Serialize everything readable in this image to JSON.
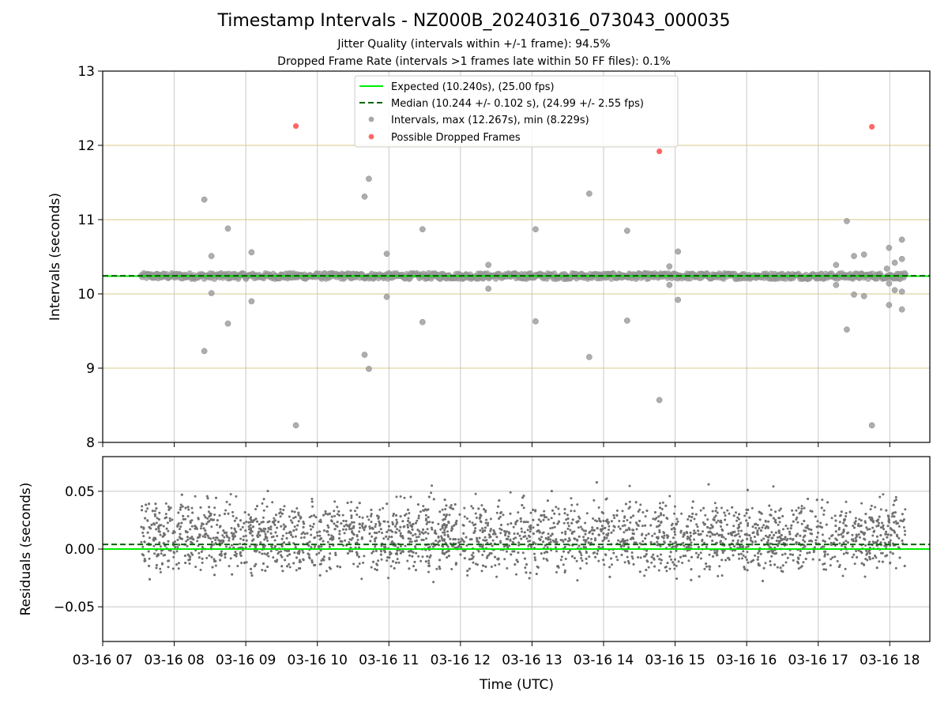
{
  "header": {
    "title": "Timestamp Intervals - NZ000B_20240316_073043_000035",
    "subtitle1": "Jitter Quality (intervals within +/-1 frame): 94.5%",
    "subtitle2": "Dropped Frame Rate (intervals >1 frames late within 50 FF files): 0.1%"
  },
  "colors": {
    "expected": "#00ee00",
    "median": "#006400",
    "intervals": "#9a9a9a",
    "dropped": "#ff5555",
    "residual": "#707070",
    "hgrid_top": "#d8c88a",
    "grid": "#c8c8c8"
  },
  "chart_data": [
    {
      "type": "scatter",
      "ylabel": "Intervals (seconds)",
      "ylim": [
        8,
        13
      ],
      "yticks": [
        "8",
        "9",
        "10",
        "11",
        "12",
        "13"
      ],
      "xlim": [
        7.0,
        18.56
      ],
      "grid": true,
      "legend_position": "top-center",
      "legend": [
        "Expected (10.240s), (25.00 fps)",
        "Median (10.244 +/- 0.102 s), (24.99 +/- 2.55 fps)",
        "Intervals, max (12.267s), min (8.229s)",
        "Possible Dropped Frames"
      ],
      "expected": 10.24,
      "median": 10.244,
      "x_band": [
        7.54,
        18.22
      ],
      "band_y": [
        10.2,
        10.28
      ],
      "outliers": [
        {
          "x": 8.42,
          "y": 11.27
        },
        {
          "x": 8.42,
          "y": 9.23
        },
        {
          "x": 8.52,
          "y": 10.51
        },
        {
          "x": 8.52,
          "y": 10.01
        },
        {
          "x": 8.75,
          "y": 10.88
        },
        {
          "x": 8.75,
          "y": 9.6
        },
        {
          "x": 9.08,
          "y": 10.56
        },
        {
          "x": 9.08,
          "y": 9.9
        },
        {
          "x": 9.7,
          "y": 8.23
        },
        {
          "x": 10.66,
          "y": 11.31
        },
        {
          "x": 10.66,
          "y": 9.18
        },
        {
          "x": 10.72,
          "y": 11.55
        },
        {
          "x": 10.72,
          "y": 8.99
        },
        {
          "x": 10.97,
          "y": 10.54
        },
        {
          "x": 10.97,
          "y": 9.96
        },
        {
          "x": 11.47,
          "y": 10.87
        },
        {
          "x": 11.47,
          "y": 9.62
        },
        {
          "x": 12.39,
          "y": 10.39
        },
        {
          "x": 12.39,
          "y": 10.07
        },
        {
          "x": 13.05,
          "y": 10.87
        },
        {
          "x": 13.05,
          "y": 9.63
        },
        {
          "x": 13.8,
          "y": 11.35
        },
        {
          "x": 13.8,
          "y": 9.15
        },
        {
          "x": 14.33,
          "y": 10.85
        },
        {
          "x": 14.33,
          "y": 9.64
        },
        {
          "x": 14.78,
          "y": 8.57
        },
        {
          "x": 14.92,
          "y": 10.37
        },
        {
          "x": 14.92,
          "y": 10.12
        },
        {
          "x": 15.04,
          "y": 10.57
        },
        {
          "x": 15.04,
          "y": 9.92
        },
        {
          "x": 17.25,
          "y": 10.39
        },
        {
          "x": 17.25,
          "y": 10.12
        },
        {
          "x": 17.4,
          "y": 10.98
        },
        {
          "x": 17.4,
          "y": 9.52
        },
        {
          "x": 17.5,
          "y": 10.51
        },
        {
          "x": 17.5,
          "y": 9.99
        },
        {
          "x": 17.64,
          "y": 10.53
        },
        {
          "x": 17.64,
          "y": 9.97
        },
        {
          "x": 17.99,
          "y": 10.62
        },
        {
          "x": 17.99,
          "y": 10.14
        },
        {
          "x": 17.99,
          "y": 9.85
        },
        {
          "x": 17.96,
          "y": 10.34
        },
        {
          "x": 18.07,
          "y": 10.42
        },
        {
          "x": 18.07,
          "y": 10.05
        },
        {
          "x": 18.17,
          "y": 10.73
        },
        {
          "x": 18.17,
          "y": 10.47
        },
        {
          "x": 18.17,
          "y": 10.03
        },
        {
          "x": 18.17,
          "y": 9.79
        },
        {
          "x": 17.75,
          "y": 8.23
        }
      ],
      "dropped": [
        {
          "x": 9.7,
          "y": 12.26
        },
        {
          "x": 14.78,
          "y": 11.92
        },
        {
          "x": 17.75,
          "y": 12.25
        }
      ]
    },
    {
      "type": "scatter",
      "ylabel": "Residuals (seconds)",
      "xlabel": "Time (UTC)",
      "ylim": [
        -0.08,
        0.08
      ],
      "yticks": [
        {
          "value": 0.05,
          "label": "0.05"
        },
        {
          "value": 0.0,
          "label": "0.00"
        },
        {
          "value": -0.05,
          "label": "−0.05"
        }
      ],
      "xlim": [
        7.0,
        18.56
      ],
      "xticks": [
        "03-16 07",
        "03-16 08",
        "03-16 09",
        "03-16 10",
        "03-16 11",
        "03-16 12",
        "03-16 13",
        "03-16 14",
        "03-16 15",
        "03-16 16",
        "03-16 17",
        "03-16 18"
      ],
      "expected_residual": 0.0,
      "median_residual": 0.004,
      "x_range": [
        7.54,
        18.22
      ],
      "point_count": 3700,
      "residual_range": [
        -0.05,
        0.06
      ]
    }
  ]
}
